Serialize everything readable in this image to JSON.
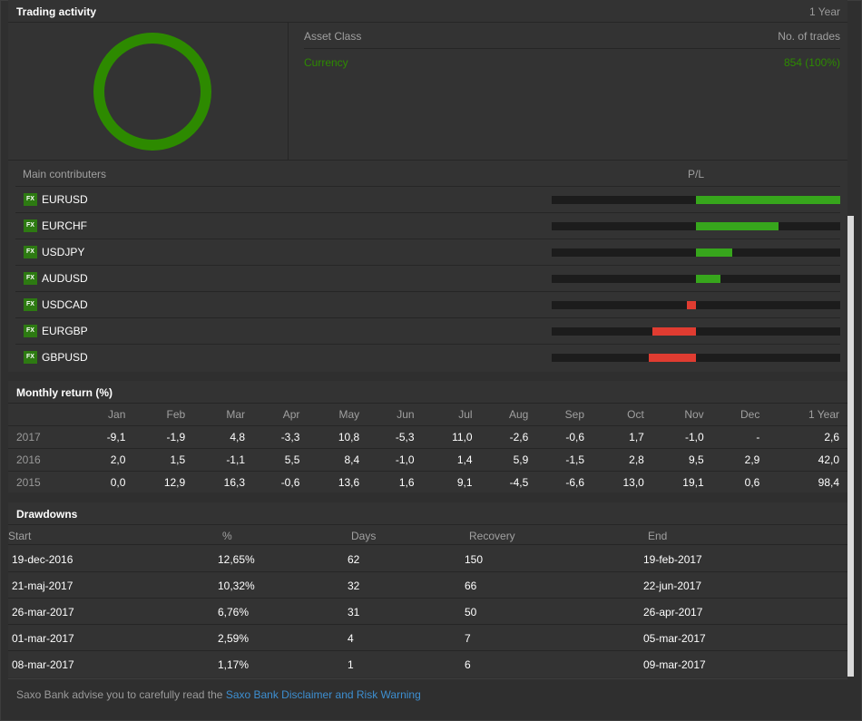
{
  "trading_activity": {
    "title": "Trading activity",
    "period": "1 Year",
    "donut_color": "#2d8a00",
    "asset_header": {
      "asset_class": "Asset Class",
      "no_of_trades": "No. of trades"
    },
    "assets": [
      {
        "name": "Currency",
        "trades": "854 (100%)",
        "share": 1.0
      }
    ],
    "contributors_header": {
      "label": "Main contributers",
      "pl": "P/L"
    },
    "badge_label": "FX",
    "contributors": [
      {
        "symbol": "EURUSD",
        "pl": 1.0
      },
      {
        "symbol": "EURCHF",
        "pl": 0.57
      },
      {
        "symbol": "USDJPY",
        "pl": 0.25
      },
      {
        "symbol": "AUDUSD",
        "pl": 0.17
      },
      {
        "symbol": "USDCAD",
        "pl": -0.06
      },
      {
        "symbol": "EURGBP",
        "pl": -0.3
      },
      {
        "symbol": "GBPUSD",
        "pl": -0.33
      }
    ],
    "colors": {
      "positive": "#37a61c",
      "negative": "#e03c31"
    }
  },
  "monthly_return": {
    "title": "Monthly return (%)",
    "columns": [
      "Jan",
      "Feb",
      "Mar",
      "Apr",
      "May",
      "Jun",
      "Jul",
      "Aug",
      "Sep",
      "Oct",
      "Nov",
      "Dec",
      "1 Year"
    ],
    "rows": [
      {
        "year": "2017",
        "values": [
          "-9,1",
          "-1,9",
          "4,8",
          "-3,3",
          "10,8",
          "-5,3",
          "11,0",
          "-2,6",
          "-0,6",
          "1,7",
          "-1,0",
          "-",
          "2,6"
        ]
      },
      {
        "year": "2016",
        "values": [
          "2,0",
          "1,5",
          "-1,1",
          "5,5",
          "8,4",
          "-1,0",
          "1,4",
          "5,9",
          "-1,5",
          "2,8",
          "9,5",
          "2,9",
          "42,0"
        ]
      },
      {
        "year": "2015",
        "values": [
          "0,0",
          "12,9",
          "16,3",
          "-0,6",
          "13,6",
          "1,6",
          "9,1",
          "-4,5",
          "-6,6",
          "13,0",
          "19,1",
          "0,6",
          "98,4"
        ]
      }
    ]
  },
  "drawdowns": {
    "title": "Drawdowns",
    "headers": {
      "start": "Start",
      "pct": "%",
      "days": "Days",
      "recovery": "Recovery",
      "end": "End"
    },
    "rows": [
      {
        "start": "19-dec-2016",
        "pct": "12,65%",
        "days": "62",
        "recovery": "150",
        "end": "19-feb-2017"
      },
      {
        "start": "21-maj-2017",
        "pct": "10,32%",
        "days": "32",
        "recovery": "66",
        "end": "22-jun-2017"
      },
      {
        "start": "26-mar-2017",
        "pct": "6,76%",
        "days": "31",
        "recovery": "50",
        "end": "26-apr-2017"
      },
      {
        "start": "01-mar-2017",
        "pct": "2,59%",
        "days": "4",
        "recovery": "7",
        "end": "05-mar-2017"
      },
      {
        "start": "08-mar-2017",
        "pct": "1,17%",
        "days": "1",
        "recovery": "6",
        "end": "09-mar-2017"
      }
    ]
  },
  "footer": {
    "text": "Saxo Bank advise you to carefully read the ",
    "link": "Saxo Bank Disclaimer and Risk Warning"
  }
}
